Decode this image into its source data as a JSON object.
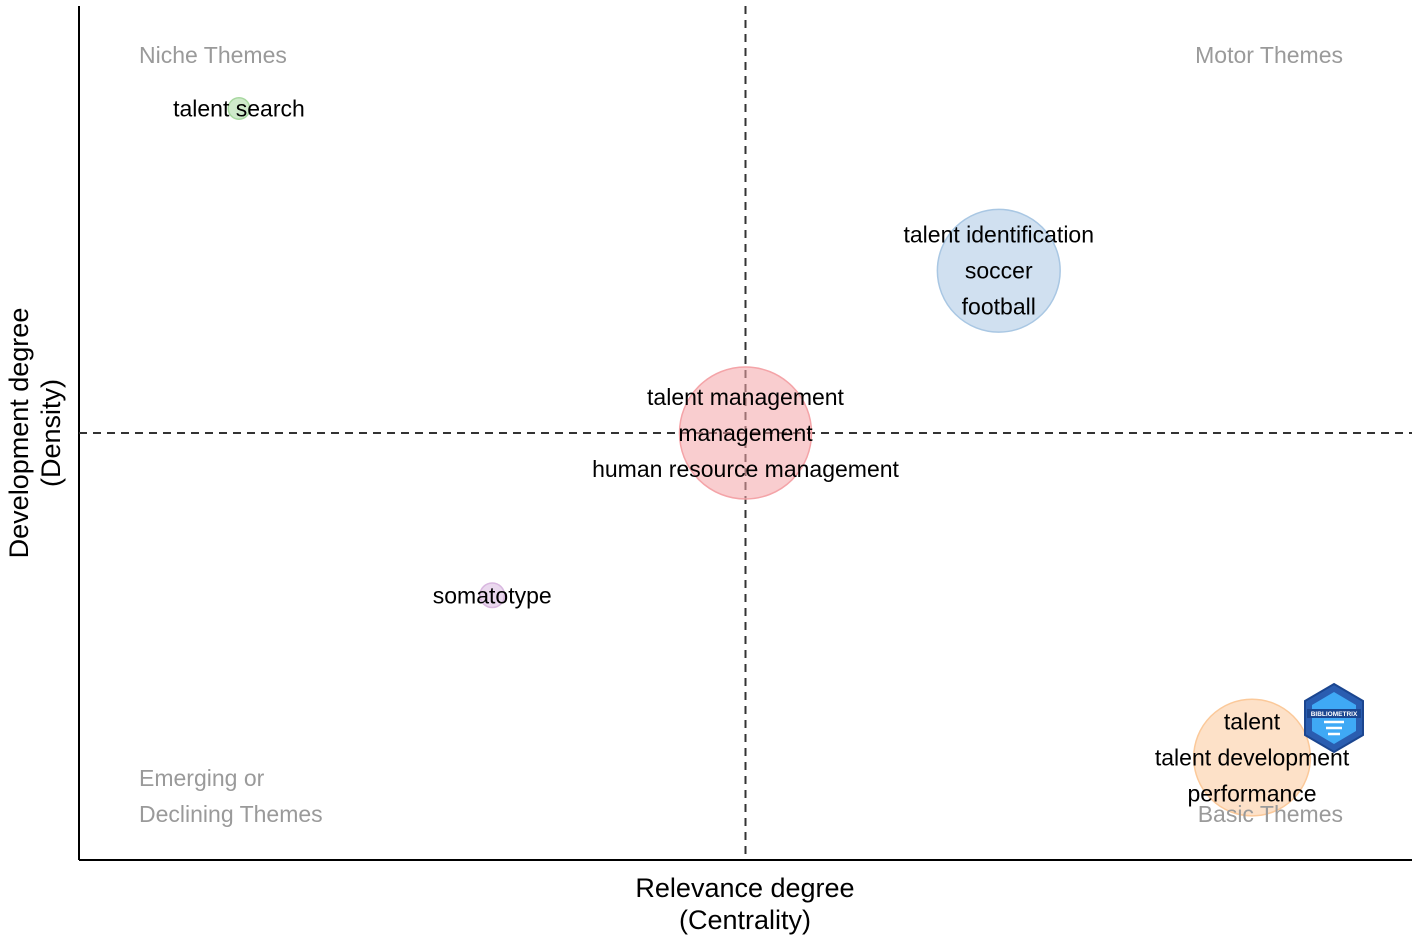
{
  "chart_data": {
    "type": "scatter",
    "title": "",
    "xlabel": [
      "Relevance degree",
      "(Centrality)"
    ],
    "ylabel": [
      "Development degree",
      "(Density)"
    ],
    "xlim": [
      0,
      1
    ],
    "ylim": [
      0,
      1
    ],
    "grid": false,
    "quadrant_lines": {
      "x": 0.5,
      "y": 0.5
    },
    "quadrant_labels": {
      "top_left": [
        "Niche Themes"
      ],
      "top_right": [
        "Motor Themes"
      ],
      "bottom_left": [
        "Emerging or",
        "Declining Themes"
      ],
      "bottom_right": [
        "Basic Themes"
      ]
    },
    "points": [
      {
        "x": 0.12,
        "y": 0.88,
        "size": 0.07,
        "color": "#a8d8a0",
        "labels": [
          "talent search"
        ]
      },
      {
        "x": 0.69,
        "y": 0.69,
        "size": 0.4,
        "color": "#a9c7e3",
        "labels": [
          "talent identification",
          "soccer",
          "football"
        ]
      },
      {
        "x": 0.5,
        "y": 0.5,
        "size": 0.43,
        "color": "#f4a4a8",
        "labels": [
          "talent management",
          "management",
          "human resource management"
        ]
      },
      {
        "x": 0.31,
        "y": 0.31,
        "size": 0.08,
        "color": "#d9b8e0",
        "labels": [
          "somatotype"
        ]
      },
      {
        "x": 0.88,
        "y": 0.12,
        "size": 0.38,
        "color": "#fbc99a",
        "labels": [
          "talent",
          "talent development",
          "performance"
        ]
      }
    ],
    "logo": "bibliometrix-logo-icon",
    "logo_text": "BIBLIOMETRIX"
  }
}
